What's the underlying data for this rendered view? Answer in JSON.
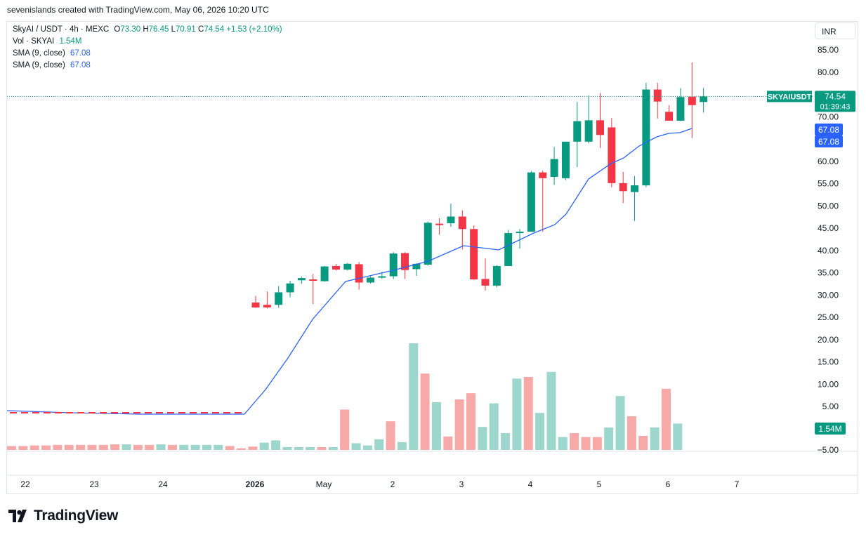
{
  "header": {
    "created_by": "sevenislands created with TradingView.com, May 06, 2026 10:20 UTC"
  },
  "legend": {
    "symbol": "SkyAI / USDT · 4h · MEXC",
    "o_label": "O",
    "o_value": "73.30",
    "h_label": "H",
    "h_value": "76.45",
    "l_label": "L",
    "l_value": "70.91",
    "c_label": "C",
    "c_value": "74.54",
    "change": "+1.53 (+2.10%)",
    "vol_label": "Vol · SKYAI",
    "vol_value": "1.54M",
    "sma1_label": "SMA (9, close)",
    "sma1_value": "67.08",
    "sma2_label": "SMA (9, close)",
    "sma2_value": "67.08"
  },
  "currency_button": "INR",
  "price_labels": {
    "symbol_tag": "SKYAIUSDT",
    "last_price": "74.54",
    "countdown": "01:39:43",
    "sma_a": "67.08",
    "sma_b": "67.08",
    "volume": "1.54M"
  },
  "brand": {
    "name": "TradingView"
  },
  "colors": {
    "up": "#089981",
    "down": "#f23645",
    "sma": "#2962ff",
    "up_volume": "#9cd6cd",
    "down_volume": "#f7a9a7"
  },
  "chart_data": {
    "type": "candlestick",
    "y_axis_ticks": [
      "85.00",
      "80.00",
      "75.00",
      "70.00",
      "65.00",
      "60.00",
      "55.00",
      "50.00",
      "45.00",
      "40.00",
      "35.00",
      "30.00",
      "25.00",
      "20.00",
      "15.00",
      "10.00",
      "5.00",
      "−5.00"
    ],
    "x_axis_ticks": [
      "22",
      "23",
      "24",
      "2026",
      "May",
      "2",
      "3",
      "4",
      "5",
      "6",
      "7"
    ],
    "ylim": [
      -6,
      88
    ],
    "candles": [
      {
        "o": 28.3,
        "h": 29.8,
        "l": 27.1,
        "c": 27.2
      },
      {
        "o": 27.8,
        "h": 30.8,
        "l": 27.0,
        "c": 27.2
      },
      {
        "o": 27.8,
        "h": 32.0,
        "l": 27.1,
        "c": 30.6
      },
      {
        "o": 30.6,
        "h": 33.2,
        "l": 29.5,
        "c": 32.6
      },
      {
        "o": 33.3,
        "h": 34.1,
        "l": 32.5,
        "c": 33.8
      },
      {
        "o": 33.5,
        "h": 34.7,
        "l": 28.0,
        "c": 33.2
      },
      {
        "o": 33.1,
        "h": 36.5,
        "l": 33.0,
        "c": 36.4
      },
      {
        "o": 36.5,
        "h": 37.0,
        "l": 35.5,
        "c": 35.7
      },
      {
        "o": 35.7,
        "h": 37.2,
        "l": 35.5,
        "c": 37.0
      },
      {
        "o": 36.9,
        "h": 37.4,
        "l": 31.2,
        "c": 32.8
      },
      {
        "o": 32.8,
        "h": 34.2,
        "l": 32.6,
        "c": 33.9
      },
      {
        "o": 34.1,
        "h": 35.2,
        "l": 33.6,
        "c": 34.2
      },
      {
        "o": 34.2,
        "h": 39.6,
        "l": 33.6,
        "c": 39.3
      },
      {
        "o": 39.4,
        "h": 39.6,
        "l": 33.6,
        "c": 35.6
      },
      {
        "o": 35.8,
        "h": 37.1,
        "l": 34.3,
        "c": 37.0
      },
      {
        "o": 36.8,
        "h": 46.5,
        "l": 36.6,
        "c": 46.2
      },
      {
        "o": 46.0,
        "h": 47.2,
        "l": 43.5,
        "c": 45.9
      },
      {
        "o": 46.1,
        "h": 50.5,
        "l": 45.3,
        "c": 47.6
      },
      {
        "o": 47.6,
        "h": 49.0,
        "l": 40.2,
        "c": 44.8
      },
      {
        "o": 44.8,
        "h": 45.6,
        "l": 33.4,
        "c": 33.5
      },
      {
        "o": 33.6,
        "h": 38.2,
        "l": 31.0,
        "c": 32.1
      },
      {
        "o": 32.1,
        "h": 36.7,
        "l": 31.7,
        "c": 36.5
      },
      {
        "o": 36.5,
        "h": 44.6,
        "l": 36.5,
        "c": 43.9
      },
      {
        "o": 43.9,
        "h": 44.8,
        "l": 40.4,
        "c": 44.2
      },
      {
        "o": 44.2,
        "h": 57.8,
        "l": 44.2,
        "c": 57.5
      },
      {
        "o": 57.5,
        "h": 57.9,
        "l": 44.2,
        "c": 56.2
      },
      {
        "o": 56.5,
        "h": 63.2,
        "l": 54.7,
        "c": 60.5
      },
      {
        "o": 56.2,
        "h": 64.2,
        "l": 55.8,
        "c": 64.4
      },
      {
        "o": 64.4,
        "h": 73.3,
        "l": 58.7,
        "c": 69.0
      },
      {
        "o": 64.4,
        "h": 74.8,
        "l": 64.0,
        "c": 69.2
      },
      {
        "o": 69.2,
        "h": 75.3,
        "l": 63.0,
        "c": 65.9
      },
      {
        "o": 67.6,
        "h": 69.7,
        "l": 54.2,
        "c": 55.1
      },
      {
        "o": 55.1,
        "h": 57.6,
        "l": 50.6,
        "c": 53.3
      },
      {
        "o": 53.1,
        "h": 56.7,
        "l": 46.6,
        "c": 54.6
      },
      {
        "o": 54.6,
        "h": 77.6,
        "l": 54.2,
        "c": 76.1
      },
      {
        "o": 76.1,
        "h": 77.6,
        "l": 69.6,
        "c": 73.4
      },
      {
        "o": 71.1,
        "h": 72.6,
        "l": 69.3,
        "c": 69.1
      },
      {
        "o": 69.1,
        "h": 76.4,
        "l": 69.0,
        "c": 74.4
      },
      {
        "o": 74.5,
        "h": 82.2,
        "l": 65.2,
        "c": 72.6
      },
      {
        "o": 73.3,
        "h": 76.45,
        "l": 70.91,
        "c": 74.54
      }
    ],
    "sma": [
      {
        "x": "21",
        "y": 3.5
      },
      {
        "x": "24",
        "y": 2.8
      },
      {
        "x": "31",
        "y": 2.9
      },
      {
        "x": "c0",
        "y": 8.5
      },
      {
        "x": "c4",
        "y": 30.5
      },
      {
        "x": "c8",
        "y": 34.8
      },
      {
        "x": "c14",
        "y": 39.5
      },
      {
        "x": "c20",
        "y": 40.2
      },
      {
        "x": "c27",
        "y": 47.4
      },
      {
        "x": "c29",
        "y": 56.3
      },
      {
        "x": "c33",
        "y": 62.0
      },
      {
        "x": "c35",
        "y": 66.6
      },
      {
        "x": "c39",
        "y": 67.08
      }
    ],
    "volume_series": [
      {
        "v": 0.7,
        "dir": "down"
      },
      {
        "v": 0.7,
        "dir": "down"
      },
      {
        "v": 0.8,
        "dir": "down"
      },
      {
        "v": 0.8,
        "dir": "down"
      },
      {
        "v": 0.9,
        "dir": "down"
      },
      {
        "v": 0.9,
        "dir": "down"
      },
      {
        "v": 0.9,
        "dir": "down"
      },
      {
        "v": 0.9,
        "dir": "down"
      },
      {
        "v": 0.9,
        "dir": "down"
      },
      {
        "v": 1.0,
        "dir": "down"
      },
      {
        "v": 1.0,
        "dir": "up"
      },
      {
        "v": 0.9,
        "dir": "down"
      },
      {
        "v": 0.9,
        "dir": "down"
      },
      {
        "v": 1.0,
        "dir": "up"
      },
      {
        "v": 0.9,
        "dir": "down"
      },
      {
        "v": 0.9,
        "dir": "up"
      },
      {
        "v": 0.9,
        "dir": "up"
      },
      {
        "v": 0.9,
        "dir": "up"
      },
      {
        "v": 0.9,
        "dir": "up"
      },
      {
        "v": 0.7,
        "dir": "down"
      },
      {
        "v": 0.3,
        "dir": "down"
      },
      {
        "v": 0.6,
        "dir": "down"
      },
      {
        "v": 1.3,
        "dir": "up"
      },
      {
        "v": 1.7,
        "dir": "up"
      },
      {
        "v": 0.5,
        "dir": "up"
      },
      {
        "v": 0.5,
        "dir": "up"
      },
      {
        "v": 0.5,
        "dir": "up"
      },
      {
        "v": 0.5,
        "dir": "down"
      },
      {
        "v": 0.5,
        "dir": "up"
      },
      {
        "v": 7.2,
        "dir": "down"
      },
      {
        "v": 1.2,
        "dir": "up"
      },
      {
        "v": 0.8,
        "dir": "up"
      },
      {
        "v": 1.9,
        "dir": "up"
      },
      {
        "v": 5.1,
        "dir": "down"
      },
      {
        "v": 1.4,
        "dir": "up"
      },
      {
        "v": 19.0,
        "dir": "up"
      },
      {
        "v": 13.6,
        "dir": "down"
      },
      {
        "v": 8.5,
        "dir": "up"
      },
      {
        "v": 2.4,
        "dir": "down"
      },
      {
        "v": 9.0,
        "dir": "down"
      },
      {
        "v": 10.1,
        "dir": "down"
      },
      {
        "v": 4.1,
        "dir": "up"
      },
      {
        "v": 8.3,
        "dir": "up"
      },
      {
        "v": 3.0,
        "dir": "up"
      },
      {
        "v": 12.7,
        "dir": "up"
      },
      {
        "v": 13.0,
        "dir": "down"
      },
      {
        "v": 6.6,
        "dir": "up"
      },
      {
        "v": 13.9,
        "dir": "up"
      },
      {
        "v": 2.3,
        "dir": "up"
      },
      {
        "v": 3.0,
        "dir": "down"
      },
      {
        "v": 2.3,
        "dir": "down"
      },
      {
        "v": 2.3,
        "dir": "down"
      },
      {
        "v": 4.0,
        "dir": "up"
      },
      {
        "v": 9.6,
        "dir": "up"
      },
      {
        "v": 6.0,
        "dir": "down"
      },
      {
        "v": 2.5,
        "dir": "down"
      },
      {
        "v": 4.0,
        "dir": "up"
      },
      {
        "v": 10.9,
        "dir": "down"
      },
      {
        "v": 4.7,
        "dir": "up"
      }
    ]
  }
}
